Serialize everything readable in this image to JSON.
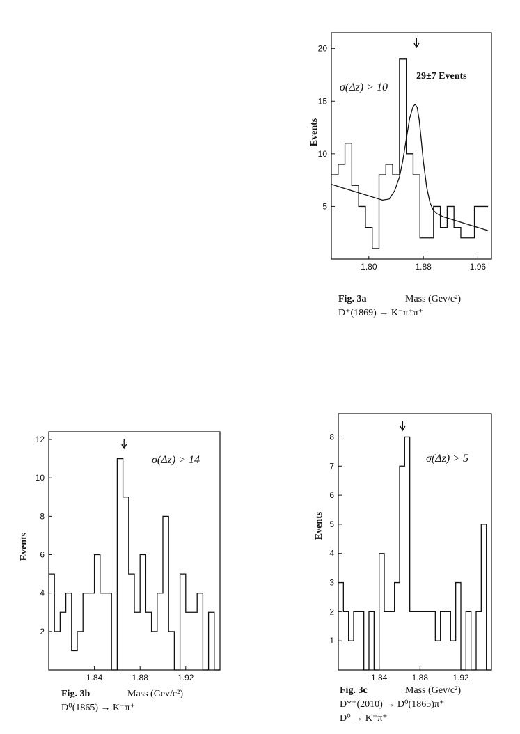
{
  "chart_data": [
    {
      "id": "fig3a",
      "type": "histogram",
      "fig_label": "Fig. 3a",
      "xlabel": "Mass (Gev/c²)",
      "ylabel": "Events",
      "caption": "D⁺(1869) → K⁻π⁺π⁺",
      "cut_label": "σ(Δz) > 10",
      "events_label": "29±7  Events",
      "xlim": [
        1.745,
        1.98
      ],
      "ylim": [
        0,
        21.5
      ],
      "xticks": [
        1.8,
        1.88,
        1.96
      ],
      "xtick_labels": [
        "1.80",
        "1.88",
        "1.96"
      ],
      "yticks": [
        5,
        10,
        15,
        20
      ],
      "ytick_labels": [
        "5",
        "10",
        "15",
        "20"
      ],
      "arrow_x": 1.87,
      "bin_edges": [
        1.745,
        1.755,
        1.765,
        1.775,
        1.785,
        1.795,
        1.805,
        1.815,
        1.825,
        1.835,
        1.845,
        1.855,
        1.865,
        1.875,
        1.885,
        1.895,
        1.905,
        1.915,
        1.925,
        1.935,
        1.945,
        1.955,
        1.965,
        1.975
      ],
      "counts": [
        8,
        9,
        11,
        7,
        5,
        3,
        1,
        8,
        9,
        8,
        19,
        10,
        8,
        2,
        2,
        5,
        3,
        5,
        3,
        2,
        2,
        5,
        5
      ],
      "fit_curve": {
        "x": [
          1.745,
          1.76,
          1.775,
          1.79,
          1.805,
          1.82,
          1.83,
          1.838,
          1.845,
          1.85,
          1.855,
          1.86,
          1.865,
          1.868,
          1.871,
          1.874,
          1.877,
          1.88,
          1.885,
          1.89,
          1.895,
          1.9,
          1.91,
          1.92,
          1.935,
          1.95,
          1.965,
          1.975
        ],
        "y": [
          7.1,
          6.8,
          6.5,
          6.2,
          5.9,
          5.6,
          5.7,
          6.5,
          7.8,
          9.4,
          11.4,
          13.4,
          14.5,
          14.7,
          14.4,
          13.2,
          11.3,
          9.3,
          6.8,
          5.3,
          4.6,
          4.3,
          4.0,
          3.8,
          3.5,
          3.2,
          2.9,
          2.7
        ]
      }
    },
    {
      "id": "fig3b",
      "type": "histogram",
      "fig_label": "Fig. 3b",
      "xlabel": "Mass (Gev/c²)",
      "ylabel": "Events",
      "caption": "D⁰(1865) → K⁻π⁺",
      "cut_label": "σ(Δz) > 14",
      "xlim": [
        1.8,
        1.95
      ],
      "ylim": [
        0,
        12.4
      ],
      "xticks": [
        1.84,
        1.88,
        1.92
      ],
      "xtick_labels": [
        "1.84",
        "1.88",
        "1.92"
      ],
      "yticks": [
        2,
        4,
        6,
        8,
        10,
        12
      ],
      "ytick_labels": [
        "2",
        "4",
        "6",
        "8",
        "10",
        "12"
      ],
      "arrow_x": 1.866,
      "bin_edges": [
        1.8,
        1.805,
        1.81,
        1.815,
        1.82,
        1.825,
        1.83,
        1.835,
        1.84,
        1.845,
        1.85,
        1.855,
        1.86,
        1.865,
        1.87,
        1.875,
        1.88,
        1.885,
        1.89,
        1.895,
        1.9,
        1.905,
        1.91,
        1.915,
        1.92,
        1.925,
        1.93,
        1.935,
        1.94,
        1.945,
        1.95
      ],
      "counts": [
        5,
        2,
        3,
        4,
        1,
        2,
        4,
        4,
        6,
        4,
        4,
        0,
        11,
        9,
        5,
        3,
        6,
        3,
        2,
        4,
        8,
        2,
        0,
        5,
        3,
        3,
        4,
        0,
        3,
        0
      ]
    },
    {
      "id": "fig3c",
      "type": "histogram",
      "fig_label": "Fig. 3c",
      "xlabel": "Mass (Gev/c²)",
      "ylabel": "Events",
      "caption": "D*⁺(2010) → D⁰(1865)π⁺",
      "caption2": "D⁰ → K⁻π⁺",
      "cut_label": "σ(Δz) > 5",
      "xlim": [
        1.8,
        1.95
      ],
      "ylim": [
        0,
        8.8
      ],
      "xticks": [
        1.84,
        1.88,
        1.92
      ],
      "xtick_labels": [
        "1.84",
        "1.88",
        "1.92"
      ],
      "yticks": [
        1,
        2,
        3,
        4,
        5,
        6,
        7,
        8
      ],
      "ytick_labels": [
        "1",
        "2",
        "3",
        "4",
        "5",
        "6",
        "7",
        "8"
      ],
      "arrow_x": 1.863,
      "bin_edges": [
        1.8,
        1.805,
        1.81,
        1.815,
        1.82,
        1.825,
        1.83,
        1.835,
        1.84,
        1.845,
        1.85,
        1.855,
        1.86,
        1.865,
        1.87,
        1.875,
        1.88,
        1.885,
        1.89,
        1.895,
        1.9,
        1.905,
        1.91,
        1.915,
        1.92,
        1.925,
        1.93,
        1.935,
        1.94,
        1.945,
        1.95
      ],
      "counts": [
        3,
        2,
        1,
        2,
        2,
        0,
        2,
        0,
        4,
        2,
        2,
        3,
        7,
        8,
        2,
        2,
        2,
        2,
        2,
        1,
        2,
        2,
        1,
        3,
        0,
        2,
        0,
        2,
        5,
        0
      ]
    }
  ]
}
